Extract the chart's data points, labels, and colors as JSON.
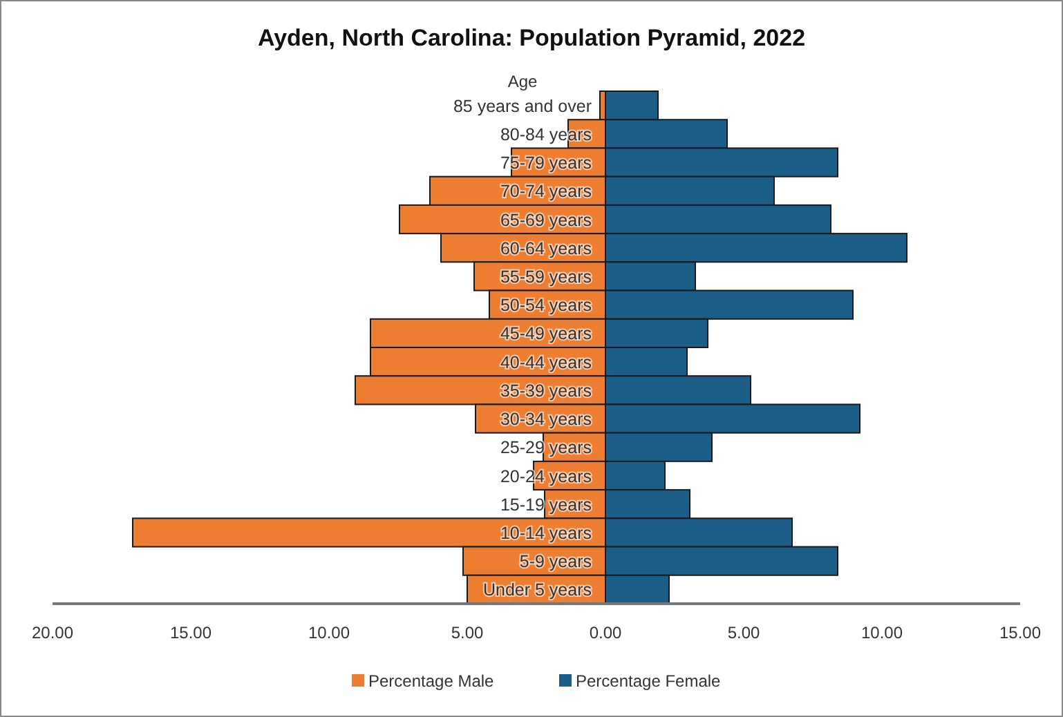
{
  "chart_data": {
    "type": "bar",
    "orientation": "horizontal",
    "stacked": true,
    "title": "Ayden, North Carolina: Population Pyramid, 2022",
    "ylabel": "Age",
    "categories": [
      "85 years and over",
      "80-84 years",
      "75-79 years",
      "70-74 years",
      "65-69 years",
      "60-64 years",
      "55-59 years",
      "50-54 years",
      "45-49 years",
      "40-44 years",
      "35-39 years",
      "30-34 years",
      "25-29 years",
      "20-24 years",
      "15-19 years",
      "10-14 years",
      "5-9 years",
      "Under 5 years"
    ],
    "series": [
      {
        "name": "Percentage Male",
        "color": "#ed7d31",
        "values": [
          -0.2,
          -1.35,
          -3.4,
          -6.35,
          -7.45,
          -5.95,
          -4.75,
          -4.2,
          -8.5,
          -8.5,
          -9.05,
          -4.7,
          -2.25,
          -2.6,
          -2.2,
          -17.1,
          -5.15,
          -5.0
        ]
      },
      {
        "name": "Percentage Female",
        "color": "#1b5e87",
        "values": [
          1.9,
          4.4,
          8.4,
          6.1,
          8.15,
          10.9,
          3.25,
          8.95,
          3.7,
          2.95,
          5.25,
          9.2,
          3.85,
          2.15,
          3.05,
          6.75,
          8.4,
          2.3
        ]
      }
    ],
    "xlim": [
      -20,
      15
    ],
    "xticks": [
      {
        "value": -20,
        "label": "20.00"
      },
      {
        "value": -15,
        "label": "15.00"
      },
      {
        "value": -10,
        "label": "10.00"
      },
      {
        "value": -5,
        "label": "5.00"
      },
      {
        "value": 0,
        "label": "0.00"
      },
      {
        "value": 5,
        "label": "5.00"
      },
      {
        "value": 10,
        "label": "10.00"
      },
      {
        "value": 15,
        "label": "15.00"
      }
    ],
    "grid": false,
    "legend": "bottom"
  }
}
